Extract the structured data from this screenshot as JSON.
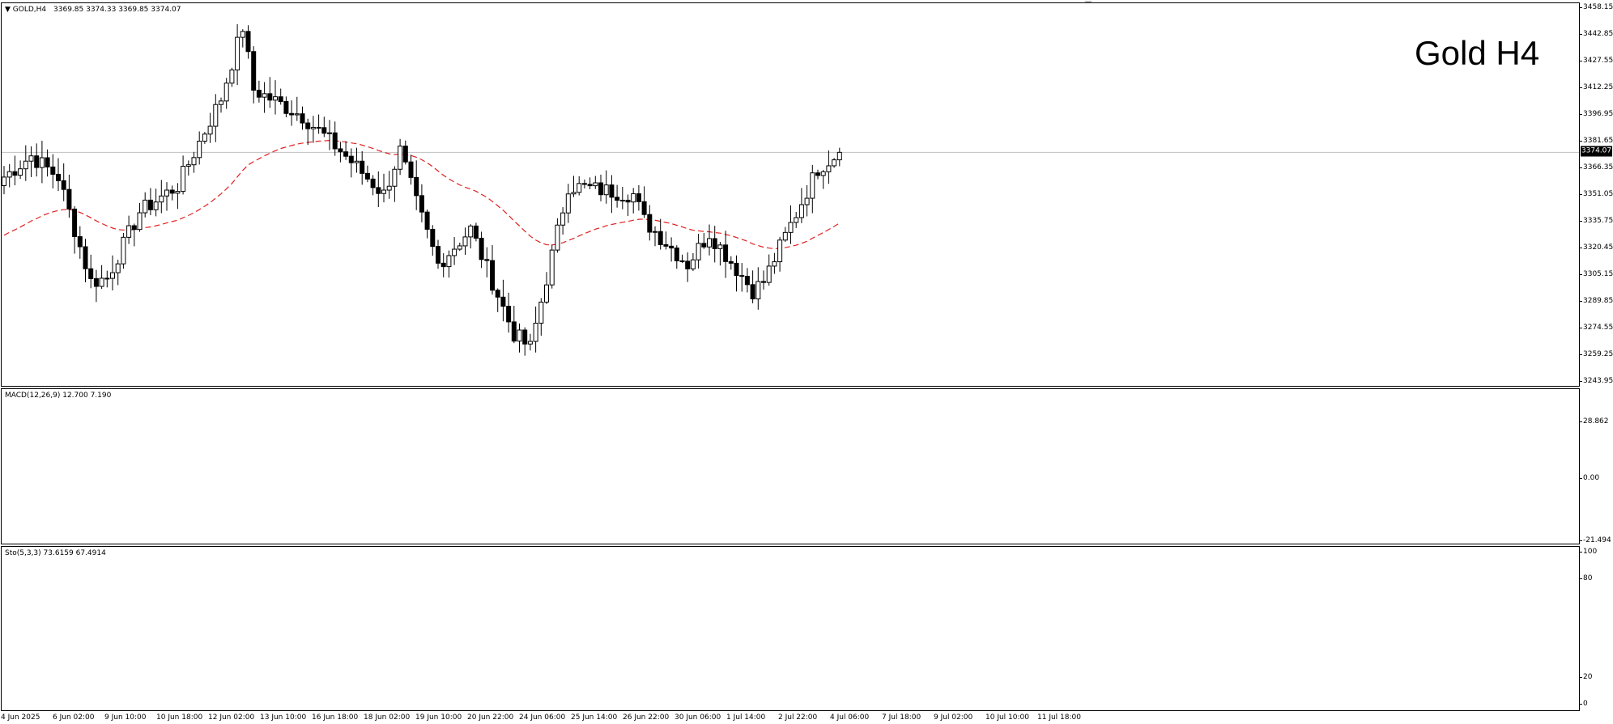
{
  "price_chart": {
    "symbol_label": "GOLD,H4",
    "ohlc_label": "3369.85 3374.33 3369.85 3374.07",
    "caption": "Gold H4",
    "current_price": "3374.07",
    "axis_ticks": [
      "3458.15",
      "3442.85",
      "3427.55",
      "3412.25",
      "3396.95",
      "3381.65",
      "3366.35",
      "3351.05",
      "3335.75",
      "3320.45",
      "3305.15",
      "3289.85",
      "3274.55",
      "3259.25",
      "3243.95"
    ],
    "colors": {
      "bull_candle": "#ffffff",
      "bear_candle": "#000000",
      "wick": "#000000",
      "moving_average": "#e02020",
      "price_line": "#c0c0c0"
    }
  },
  "macd": {
    "label": "MACD(12,26,9) 12.700 7.190",
    "axis_ticks": [
      "28.862",
      "0.00",
      "-21.494"
    ],
    "colors": {
      "histogram": "#00ff00",
      "signal": "#e00000"
    }
  },
  "stochastic": {
    "label": "Sto(5,3,3) 73.6159 67.4914",
    "axis_ticks": [
      "100",
      "80",
      "20",
      "0"
    ],
    "colors": {
      "main": "#20b2aa",
      "signal": "#e00000",
      "level": "#a0a0a0"
    }
  },
  "time_axis": [
    "4 Jun 2025",
    "6 Jun 02:00",
    "9 Jun 10:00",
    "10 Jun 18:00",
    "12 Jun 02:00",
    "13 Jun 10:00",
    "16 Jun 18:00",
    "18 Jun 02:00",
    "19 Jun 10:00",
    "20 Jun 22:00",
    "24 Jun 06:00",
    "25 Jun 14:00",
    "26 Jun 22:00",
    "30 Jun 06:00",
    "1 Jul 14:00",
    "2 Jul 22:00",
    "4 Jul 06:00",
    "7 Jul 18:00",
    "9 Jul 02:00",
    "10 Jul 10:00",
    "11 Jul 18:00"
  ]
}
